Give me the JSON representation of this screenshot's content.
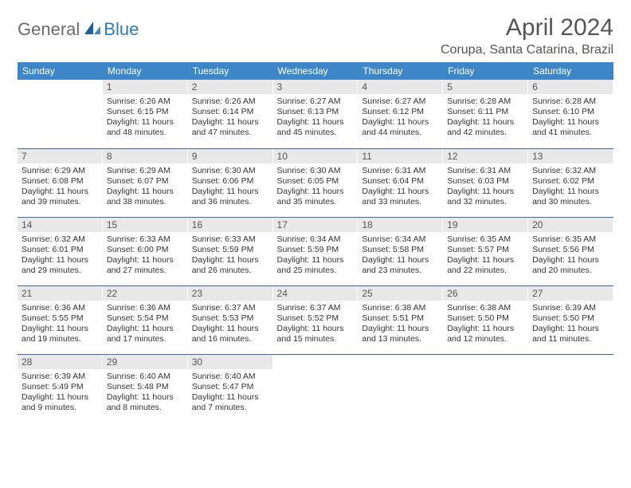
{
  "logo": {
    "general": "General",
    "blue": "Blue"
  },
  "title": "April 2024",
  "location": "Corupa, Santa Catarina, Brazil",
  "colors": {
    "header_bg": "#3d87c9",
    "header_text": "#ffffff",
    "daynum_bg": "#e8e8e8",
    "border": "#3d6a94",
    "logo_gray": "#6b6b6b",
    "logo_blue": "#2b7bbf"
  },
  "weekdays": [
    "Sunday",
    "Monday",
    "Tuesday",
    "Wednesday",
    "Thursday",
    "Friday",
    "Saturday"
  ],
  "weeks": [
    [
      null,
      {
        "n": "1",
        "sr": "6:26 AM",
        "ss": "6:15 PM",
        "dl": "11 hours and 48 minutes."
      },
      {
        "n": "2",
        "sr": "6:26 AM",
        "ss": "6:14 PM",
        "dl": "11 hours and 47 minutes."
      },
      {
        "n": "3",
        "sr": "6:27 AM",
        "ss": "6:13 PM",
        "dl": "11 hours and 45 minutes."
      },
      {
        "n": "4",
        "sr": "6:27 AM",
        "ss": "6:12 PM",
        "dl": "11 hours and 44 minutes."
      },
      {
        "n": "5",
        "sr": "6:28 AM",
        "ss": "6:11 PM",
        "dl": "11 hours and 42 minutes."
      },
      {
        "n": "6",
        "sr": "6:28 AM",
        "ss": "6:10 PM",
        "dl": "11 hours and 41 minutes."
      }
    ],
    [
      {
        "n": "7",
        "sr": "6:29 AM",
        "ss": "6:08 PM",
        "dl": "11 hours and 39 minutes."
      },
      {
        "n": "8",
        "sr": "6:29 AM",
        "ss": "6:07 PM",
        "dl": "11 hours and 38 minutes."
      },
      {
        "n": "9",
        "sr": "6:30 AM",
        "ss": "6:06 PM",
        "dl": "11 hours and 36 minutes."
      },
      {
        "n": "10",
        "sr": "6:30 AM",
        "ss": "6:05 PM",
        "dl": "11 hours and 35 minutes."
      },
      {
        "n": "11",
        "sr": "6:31 AM",
        "ss": "6:04 PM",
        "dl": "11 hours and 33 minutes."
      },
      {
        "n": "12",
        "sr": "6:31 AM",
        "ss": "6:03 PM",
        "dl": "11 hours and 32 minutes."
      },
      {
        "n": "13",
        "sr": "6:32 AM",
        "ss": "6:02 PM",
        "dl": "11 hours and 30 minutes."
      }
    ],
    [
      {
        "n": "14",
        "sr": "6:32 AM",
        "ss": "6:01 PM",
        "dl": "11 hours and 29 minutes."
      },
      {
        "n": "15",
        "sr": "6:33 AM",
        "ss": "6:00 PM",
        "dl": "11 hours and 27 minutes."
      },
      {
        "n": "16",
        "sr": "6:33 AM",
        "ss": "5:59 PM",
        "dl": "11 hours and 26 minutes."
      },
      {
        "n": "17",
        "sr": "6:34 AM",
        "ss": "5:59 PM",
        "dl": "11 hours and 25 minutes."
      },
      {
        "n": "18",
        "sr": "6:34 AM",
        "ss": "5:58 PM",
        "dl": "11 hours and 23 minutes."
      },
      {
        "n": "19",
        "sr": "6:35 AM",
        "ss": "5:57 PM",
        "dl": "11 hours and 22 minutes."
      },
      {
        "n": "20",
        "sr": "6:35 AM",
        "ss": "5:56 PM",
        "dl": "11 hours and 20 minutes."
      }
    ],
    [
      {
        "n": "21",
        "sr": "6:36 AM",
        "ss": "5:55 PM",
        "dl": "11 hours and 19 minutes."
      },
      {
        "n": "22",
        "sr": "6:36 AM",
        "ss": "5:54 PM",
        "dl": "11 hours and 17 minutes."
      },
      {
        "n": "23",
        "sr": "6:37 AM",
        "ss": "5:53 PM",
        "dl": "11 hours and 16 minutes."
      },
      {
        "n": "24",
        "sr": "6:37 AM",
        "ss": "5:52 PM",
        "dl": "11 hours and 15 minutes."
      },
      {
        "n": "25",
        "sr": "6:38 AM",
        "ss": "5:51 PM",
        "dl": "11 hours and 13 minutes."
      },
      {
        "n": "26",
        "sr": "6:38 AM",
        "ss": "5:50 PM",
        "dl": "11 hours and 12 minutes."
      },
      {
        "n": "27",
        "sr": "6:39 AM",
        "ss": "5:50 PM",
        "dl": "11 hours and 11 minutes."
      }
    ],
    [
      {
        "n": "28",
        "sr": "6:39 AM",
        "ss": "5:49 PM",
        "dl": "11 hours and 9 minutes."
      },
      {
        "n": "29",
        "sr": "6:40 AM",
        "ss": "5:48 PM",
        "dl": "11 hours and 8 minutes."
      },
      {
        "n": "30",
        "sr": "6:40 AM",
        "ss": "5:47 PM",
        "dl": "11 hours and 7 minutes."
      },
      null,
      null,
      null,
      null
    ]
  ],
  "labels": {
    "sunrise": "Sunrise:",
    "sunset": "Sunset:",
    "daylight": "Daylight:"
  }
}
